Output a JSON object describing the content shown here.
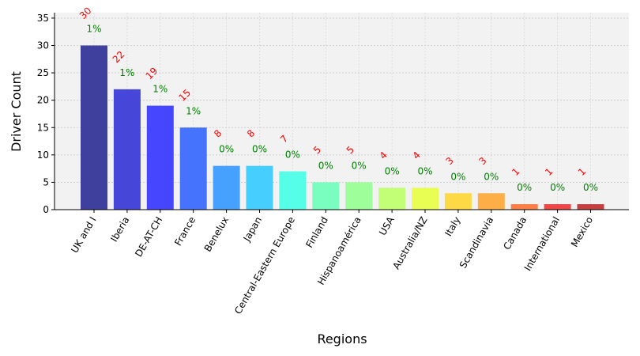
{
  "chart_data": {
    "type": "bar",
    "xlabel": "Regions",
    "ylabel": "Driver Count",
    "ylim": [
      0,
      36
    ],
    "yticks": [
      0,
      5,
      10,
      15,
      20,
      25,
      30,
      35
    ],
    "grid": true,
    "categories": [
      "UK and I",
      "Iberia",
      "DE-AT-CH",
      "France",
      "Benelux",
      "Japan",
      "Central-Eastern Europe",
      "Finland",
      "Hispanoamérica",
      "USA",
      "Australia/NZ",
      "Italy",
      "Scandinavia",
      "Canada",
      "International",
      "Mexico"
    ],
    "values": [
      30,
      22,
      19,
      15,
      8,
      8,
      7,
      5,
      5,
      4,
      4,
      3,
      3,
      1,
      1,
      1
    ],
    "value_labels": [
      "30",
      "22",
      "19",
      "15",
      "8",
      "8",
      "7",
      "5",
      "5",
      "4",
      "4",
      "3",
      "3",
      "1",
      "1",
      "1"
    ],
    "percent_labels": [
      "1%",
      "1%",
      "1%",
      "1%",
      "0%",
      "0%",
      "0%",
      "0%",
      "0%",
      "0%",
      "0%",
      "0%",
      "0%",
      "0%",
      "0%",
      "0%"
    ],
    "colors": [
      "#3f3f9e",
      "#4646d8",
      "#4646fe",
      "#4673fe",
      "#46a0fe",
      "#46cffe",
      "#55fee6",
      "#7afec0",
      "#9efe9a",
      "#c3fe77",
      "#e9fe52",
      "#fed946",
      "#feae46",
      "#fe7f46",
      "#f04646",
      "#c63f3f"
    ],
    "value_label_color": "#ff0000",
    "percent_label_color": "#008000",
    "plot_background": "#f2f2f2"
  }
}
